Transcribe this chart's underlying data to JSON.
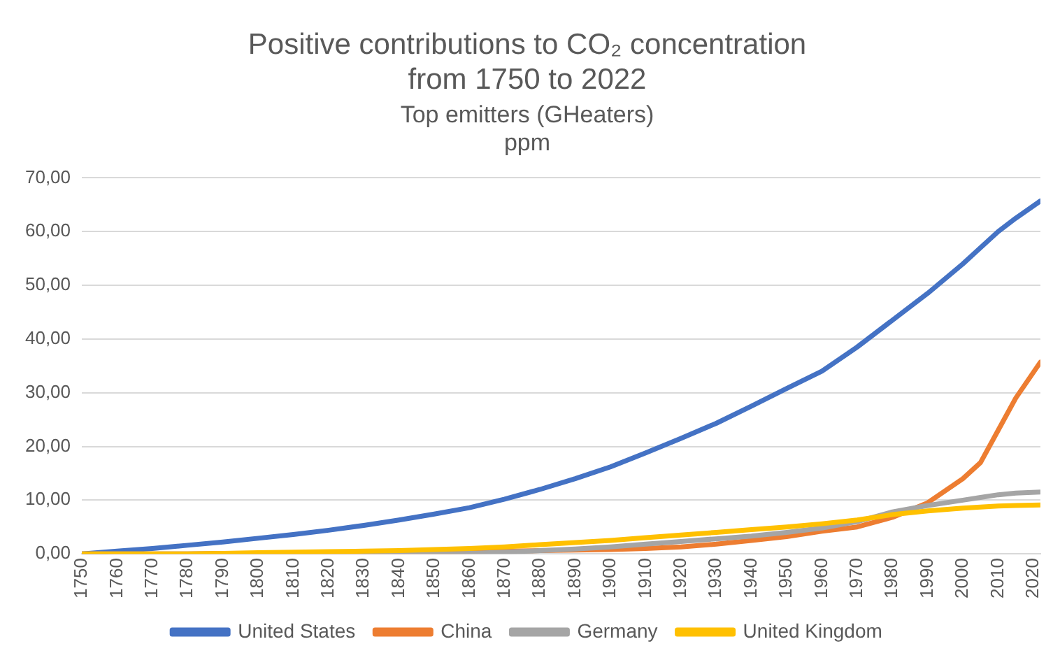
{
  "chart_data": {
    "type": "line",
    "title": "Positive contributions to CO₂ concentration from 1750 to 2022",
    "subtitle": [
      "Top emitters (GHeaters)",
      "ppm"
    ],
    "x": [
      1750,
      1760,
      1770,
      1780,
      1790,
      1800,
      1810,
      1820,
      1830,
      1840,
      1850,
      1860,
      1870,
      1880,
      1890,
      1900,
      1910,
      1920,
      1930,
      1940,
      1950,
      1960,
      1970,
      1980,
      1990,
      2000,
      2005,
      2010,
      2015,
      2022
    ],
    "series": [
      {
        "name": "United States",
        "color": "#4472c4",
        "values": [
          0,
          0.5,
          1.0,
          1.6,
          2.2,
          2.9,
          3.6,
          4.4,
          5.3,
          6.3,
          7.4,
          8.6,
          10.2,
          12.0,
          14.0,
          16.2,
          18.8,
          21.5,
          24.3,
          27.5,
          30.8,
          34.0,
          38.5,
          43.5,
          48.5,
          54.0,
          57.0,
          60.0,
          62.5,
          65.7
        ]
      },
      {
        "name": "China",
        "color": "#ed7d31",
        "values": [
          0,
          0,
          0,
          0,
          0.1,
          0.1,
          0.2,
          0.2,
          0.2,
          0.3,
          0.3,
          0.4,
          0.5,
          0.6,
          0.7,
          0.8,
          1.0,
          1.3,
          1.8,
          2.5,
          3.2,
          4.2,
          5.0,
          6.8,
          9.5,
          14.0,
          17.0,
          23.0,
          29.0,
          35.7
        ]
      },
      {
        "name": "Germany",
        "color": "#a5a5a5",
        "values": [
          0,
          0,
          0,
          0,
          0,
          0,
          0,
          0,
          0,
          0,
          0,
          0.1,
          0.3,
          0.6,
          0.9,
          1.3,
          1.8,
          2.3,
          2.8,
          3.3,
          4.0,
          4.8,
          6.0,
          7.8,
          9.0,
          10.0,
          10.5,
          11.0,
          11.3,
          11.5
        ]
      },
      {
        "name": "United Kingdom",
        "color": "#ffc000",
        "values": [
          0,
          0,
          0,
          0,
          0.1,
          0.2,
          0.3,
          0.4,
          0.5,
          0.6,
          0.8,
          1.0,
          1.3,
          1.7,
          2.1,
          2.5,
          3.0,
          3.5,
          4.0,
          4.5,
          5.0,
          5.6,
          6.3,
          7.3,
          8.0,
          8.5,
          8.7,
          8.9,
          9.0,
          9.1
        ]
      }
    ],
    "xlim": [
      1750,
      2022
    ],
    "xticks": [
      1750,
      1760,
      1770,
      1780,
      1790,
      1800,
      1810,
      1820,
      1830,
      1840,
      1850,
      1860,
      1870,
      1880,
      1890,
      1900,
      1910,
      1920,
      1930,
      1940,
      1950,
      1960,
      1970,
      1980,
      1990,
      2000,
      2010,
      2020
    ],
    "ylim": [
      0,
      70
    ],
    "yticks": [
      {
        "value": 0,
        "label": "0,00"
      },
      {
        "value": 10,
        "label": "10,00"
      },
      {
        "value": 20,
        "label": "20,00"
      },
      {
        "value": 30,
        "label": "30,00"
      },
      {
        "value": 40,
        "label": "40,00"
      },
      {
        "value": 50,
        "label": "50,00"
      },
      {
        "value": 60,
        "label": "60,00"
      },
      {
        "value": 70,
        "label": "70,00"
      }
    ],
    "grid": "y",
    "legend": "bottom",
    "marker": "none",
    "line_style": "solid"
  }
}
